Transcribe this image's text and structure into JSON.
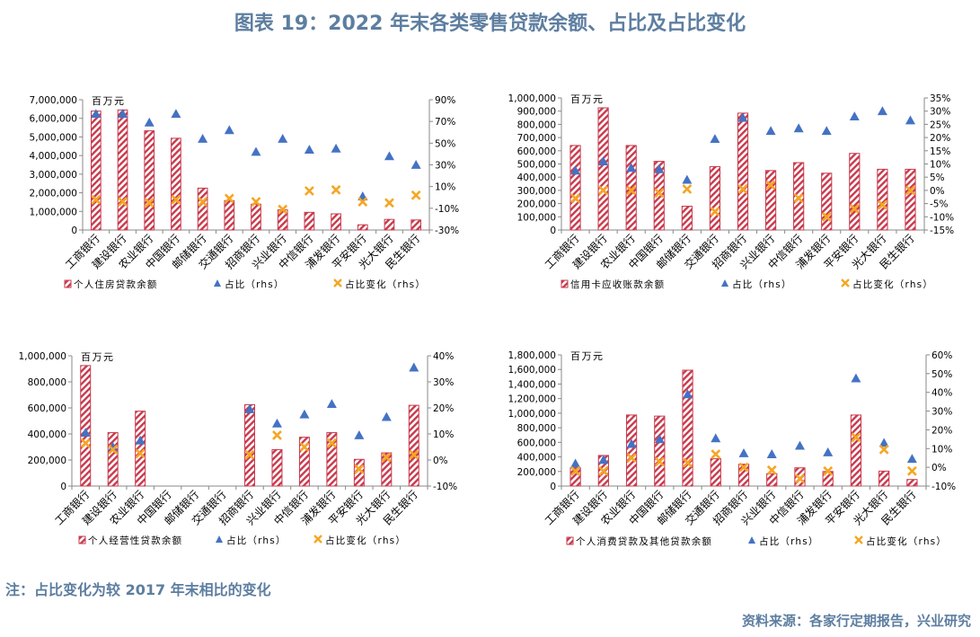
{
  "figure": {
    "title": "图表 19：2022 年末各类零售贷款余额、占比及占比变化",
    "note": "注：占比变化为较 2017 年末相比的变化",
    "source": "资料来源：各家行定期报告，兴业研究",
    "colors": {
      "bar": "#c8394c",
      "share": "#4472c4",
      "change": "#f5a623",
      "title": "#5d7ea0"
    }
  },
  "chart_data": [
    {
      "type": "bar",
      "unit_label": "百万元",
      "categories": [
        "工商银行",
        "建设银行",
        "农业银行",
        "中国银行",
        "邮储银行",
        "交通银行",
        "招商银行",
        "兴业银行",
        "中信银行",
        "浦发银行",
        "平安银行",
        "光大银行",
        "民生银行"
      ],
      "y_ticks": [
        "7,000,000",
        "6,000,000",
        "5,000,000",
        "4,000,000",
        "3,000,000",
        "2,000,000",
        "1,000,000",
        "0"
      ],
      "y2_ticks": [
        "90%",
        "70%",
        "50%",
        "30%",
        "10%",
        "-10%",
        "-30%"
      ],
      "ylim": [
        0,
        7000000
      ],
      "y2lim": [
        -30,
        90
      ],
      "series": [
        {
          "name": "个人住房贷款余额",
          "kind": "bar",
          "values": [
            6390000,
            6450000,
            5330000,
            4930000,
            2250000,
            1580000,
            1390000,
            1080000,
            950000,
            870000,
            280000,
            570000,
            540000
          ]
        },
        {
          "name": "占比（rhs）",
          "kind": "triangle",
          "values": [
            77,
            77,
            69,
            77,
            54,
            62,
            42,
            54,
            44,
            45,
            1,
            38,
            30
          ]
        },
        {
          "name": "占比变化（rhs）",
          "kind": "cross",
          "values": [
            -2,
            -4,
            -5,
            -2,
            -4,
            -1,
            -4,
            -11,
            6,
            7,
            -4,
            -5,
            2
          ]
        }
      ]
    },
    {
      "type": "bar",
      "unit_label": "百万元",
      "categories": [
        "工商银行",
        "建设银行",
        "农业银行",
        "中国银行",
        "邮储银行",
        "交通银行",
        "招商银行",
        "兴业银行",
        "中信银行",
        "浦发银行",
        "平安银行",
        "光大银行",
        "民生银行"
      ],
      "y_ticks": [
        "1,000,000",
        "900,000",
        "800,000",
        "700,000",
        "600,000",
        "500,000",
        "400,000",
        "300,000",
        "200,000",
        "100,000",
        "0"
      ],
      "y2_ticks": [
        "35%",
        "30%",
        "25%",
        "20%",
        "15%",
        "10%",
        "5%",
        "0%",
        "-5%",
        "-10%",
        "-15%"
      ],
      "ylim": [
        0,
        1000000
      ],
      "y2lim": [
        -15,
        35
      ],
      "series": [
        {
          "name": "信用卡应收账款余额",
          "kind": "bar",
          "values": [
            640000,
            925000,
            640000,
            520000,
            180000,
            480000,
            885000,
            450000,
            510000,
            430000,
            580000,
            460000,
            460000
          ]
        },
        {
          "name": "占比（rhs）",
          "kind": "triangle",
          "values": [
            7.5,
            11,
            8.5,
            8,
            4,
            19.5,
            27.5,
            22.5,
            23.5,
            22.5,
            28,
            30,
            26.5
          ]
        },
        {
          "name": "占比变化（rhs）",
          "kind": "cross",
          "values": [
            -3,
            0,
            0,
            -1,
            0.5,
            -8,
            0.5,
            2,
            -3,
            -10,
            -7,
            -5.5,
            0
          ]
        }
      ]
    },
    {
      "type": "bar",
      "unit_label": "百万元",
      "categories": [
        "工商银行",
        "建设银行",
        "农业银行",
        "中国银行",
        "邮储银行",
        "交通银行",
        "招商银行",
        "兴业银行",
        "中信银行",
        "浦发银行",
        "平安银行",
        "光大银行",
        "民生银行"
      ],
      "y_ticks": [
        "1,000,000",
        "800,000",
        "600,000",
        "400,000",
        "200,000",
        "0"
      ],
      "y2_ticks": [
        "40%",
        "30%",
        "20%",
        "10%",
        "0%",
        "-10%"
      ],
      "ylim": [
        0,
        1000000
      ],
      "y2lim": [
        -10,
        40
      ],
      "series": [
        {
          "name": "个人经营性贷款余额",
          "kind": "bar",
          "values": [
            925000,
            410000,
            575000,
            null,
            null,
            null,
            625000,
            280000,
            375000,
            410000,
            205000,
            255000,
            620000
          ]
        },
        {
          "name": "占比（rhs）",
          "kind": "triangle",
          "values": [
            10.5,
            5,
            7.5,
            null,
            null,
            null,
            19.5,
            14,
            17.5,
            21.5,
            9.5,
            16.5,
            35.5
          ]
        },
        {
          "name": "占比变化（rhs）",
          "kind": "cross",
          "values": [
            6.5,
            4,
            2.5,
            null,
            null,
            null,
            2,
            9.5,
            5,
            6.5,
            -3.5,
            1,
            2
          ]
        }
      ]
    },
    {
      "type": "bar",
      "unit_label": "百万元",
      "categories": [
        "工商银行",
        "建设银行",
        "农业银行",
        "中国银行",
        "邮储银行",
        "交通银行",
        "招商银行",
        "兴业银行",
        "中信银行",
        "浦发银行",
        "平安银行",
        "光大银行",
        "民生银行"
      ],
      "y_ticks": [
        "1,800,000",
        "1,600,000",
        "1,400,000",
        "1,200,000",
        "1,000,000",
        "800,000",
        "600,000",
        "400,000",
        "200,000",
        "0"
      ],
      "y2_ticks": [
        "60%",
        "50%",
        "40%",
        "30%",
        "20%",
        "10%",
        "0%",
        "-10%"
      ],
      "ylim": [
        0,
        1800000
      ],
      "y2lim": [
        -10,
        60
      ],
      "series": [
        {
          "name": "个人消费贷款及其他贷款余额",
          "kind": "bar",
          "values": [
            250000,
            420000,
            975000,
            960000,
            1590000,
            375000,
            300000,
            170000,
            250000,
            200000,
            975000,
            205000,
            90000
          ]
        },
        {
          "name": "占比（rhs）",
          "kind": "triangle",
          "values": [
            2,
            4,
            12.5,
            15,
            39,
            15.5,
            7.5,
            7,
            11.5,
            8,
            47.5,
            13,
            4.5
          ]
        },
        {
          "name": "占比变化（rhs）",
          "kind": "cross",
          "values": [
            -2,
            -2,
            5,
            3,
            2.5,
            7,
            0,
            -1.5,
            -6,
            -2,
            16,
            9.5,
            -2
          ]
        }
      ]
    }
  ]
}
